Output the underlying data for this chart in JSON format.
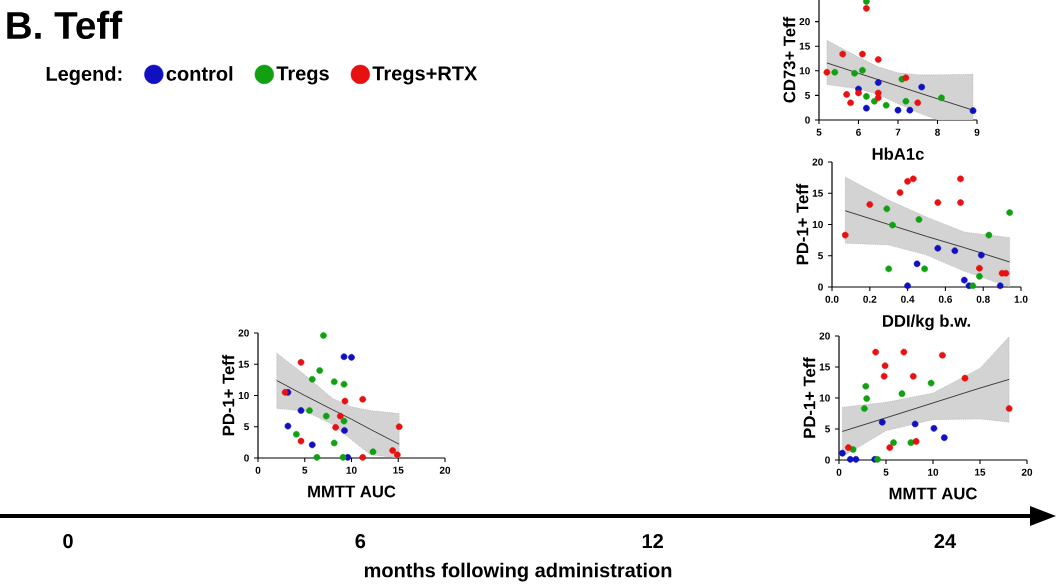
{
  "chart_data": [
    {
      "type": "other",
      "title": "B. Teff",
      "categories": [
        "0",
        "6",
        "12",
        "24"
      ],
      "xlabel": "months following administration"
    },
    {
      "type": "scatter",
      "xlabel": "HbA1c",
      "ylabel": "CD73+ Teff",
      "xlim": [
        5,
        9
      ],
      "ylim": [
        0,
        24.4
      ],
      "xticks": [
        5,
        6,
        7,
        8,
        9
      ],
      "yticks": [
        0,
        5,
        10,
        15,
        20
      ],
      "legend": "left",
      "legend_title": "Legend:",
      "series": [
        {
          "name": "control",
          "marker": "circle",
          "color": "#1010c0",
          "x": [
            6.0,
            6.2,
            6.5,
            7.0,
            7.3,
            7.6,
            8.9
          ],
          "values": [
            6.3,
            2.4,
            7.6,
            2.0,
            2.0,
            6.7,
            1.9
          ]
        },
        {
          "name": "Tregs",
          "marker": "circle",
          "color": "#10a010",
          "x": [
            5.4,
            5.9,
            6.1,
            6.2,
            6.4,
            6.7,
            7.1,
            7.2,
            8.1,
            6.2
          ],
          "values": [
            9.7,
            9.5,
            10.1,
            4.8,
            3.8,
            3.0,
            8.3,
            3.8,
            4.5,
            24.1
          ]
        },
        {
          "name": "Tregs+RTX",
          "marker": "circle",
          "color": "#e81010",
          "x": [
            5.2,
            5.6,
            5.7,
            5.8,
            6.0,
            6.1,
            6.2,
            6.5,
            6.5,
            6.5,
            7.2,
            7.5
          ],
          "values": [
            9.7,
            13.4,
            5.2,
            3.5,
            5.5,
            13.4,
            22.7,
            12.3,
            5.5,
            4.5,
            8.6,
            3.5
          ]
        },
        {
          "type": "line",
          "marker": "none",
          "color": "#333333",
          "x": [
            5.2,
            6.0,
            6.5,
            7.0,
            7.5,
            8.0,
            8.9
          ],
          "values": [
            11.6,
            9.5,
            8.2,
            6.9,
            5.6,
            4.3,
            2.0
          ],
          "lower": [
            7.2,
            6.3,
            5.2,
            3.3,
            1.5,
            0,
            0
          ],
          "upper": [
            16.2,
            12.8,
            10.8,
            9.6,
            9.2,
            9.2,
            9.3
          ]
        }
      ]
    },
    {
      "type": "scatter",
      "xlabel": "DDI/kg b.w.",
      "ylabel": "PD-1+ Teff",
      "xlim": [
        0,
        1
      ],
      "ylim": [
        0,
        20
      ],
      "xticks": [
        {
          "value": 0,
          "label": "0.0"
        },
        0.2,
        0.4,
        0.6,
        0.8,
        {
          "value": 1,
          "label": "1.0"
        }
      ],
      "yticks": [
        0,
        5,
        10,
        15,
        20
      ],
      "series": [
        {
          "marker": "circle",
          "color": "#1010c0",
          "x": [
            0.4,
            0.45,
            0.56,
            0.65,
            0.7,
            0.725,
            0.79,
            0.89
          ],
          "values": [
            0.2,
            3.7,
            6.2,
            5.8,
            1.1,
            0.2,
            5.1,
            0.2
          ]
        },
        {
          "marker": "circle",
          "color": "#10a010",
          "x": [
            0.29,
            0.32,
            0.3,
            0.46,
            0.49,
            0.83,
            0.94,
            0.78,
            0.745
          ],
          "values": [
            12.5,
            9.9,
            2.9,
            10.8,
            2.9,
            8.3,
            11.9,
            1.7,
            0.2
          ]
        },
        {
          "marker": "circle",
          "color": "#e81010",
          "x": [
            0.07,
            0.2,
            0.36,
            0.4,
            0.43,
            0.56,
            0.68,
            0.68,
            0.78,
            0.9,
            0.92
          ],
          "values": [
            8.3,
            13.2,
            15.1,
            16.9,
            17.3,
            13.5,
            17.3,
            13.5,
            3.0,
            2.2,
            2.2
          ]
        },
        {
          "type": "line",
          "marker": "none",
          "color": "#333333",
          "x": [
            0.07,
            0.3,
            0.5,
            0.7,
            0.94
          ],
          "values": [
            12.2,
            10.0,
            8.1,
            6.3,
            4.0
          ],
          "lower": [
            7.0,
            6.7,
            5.1,
            2.5,
            0
          ],
          "upper": [
            17.6,
            13.9,
            11.2,
            8.8,
            7.9
          ]
        }
      ]
    },
    {
      "type": "scatter",
      "xlabel": "MMTT AUC",
      "ylabel": "PD-1+ Teff",
      "xlim": [
        0,
        20
      ],
      "ylim": [
        0,
        20
      ],
      "xticks": [
        0,
        5,
        10,
        15,
        20
      ],
      "yticks": [
        0,
        5,
        10,
        15,
        20
      ],
      "series": [
        {
          "marker": "circle",
          "color": "#1010c0",
          "x": [
            9.2,
            10.0,
            3.2,
            4.6,
            3.2,
            5.8,
            9.25,
            9.6
          ],
          "values": [
            16.2,
            16.1,
            10.5,
            7.6,
            5.1,
            2.1,
            4.4,
            0.1
          ]
        },
        {
          "marker": "circle",
          "color": "#10a010",
          "x": [
            7.0,
            6.6,
            5.8,
            8.15,
            9.2,
            5.5,
            7.3,
            9.2,
            4.1,
            8.15,
            6.3,
            9.1,
            12.3
          ],
          "values": [
            19.6,
            14.0,
            12.6,
            12.2,
            11.8,
            7.6,
            6.7,
            5.9,
            3.8,
            2.4,
            0.1,
            0.1,
            1.0
          ]
        },
        {
          "marker": "circle",
          "color": "#e81010",
          "x": [
            2.9,
            4.6,
            4.6,
            9.3,
            11.2,
            8.8,
            8.3,
            11.2,
            14.4,
            14.9,
            15.1
          ],
          "values": [
            10.5,
            15.3,
            2.7,
            9.1,
            9.4,
            6.7,
            4.9,
            0.1,
            1.2,
            0.5,
            5.0
          ]
        },
        {
          "type": "line",
          "marker": "none",
          "color": "#333333",
          "x": [
            2,
            5,
            8,
            10,
            12,
            15.1
          ],
          "values": [
            12.4,
            10.0,
            7.7,
            6.2,
            4.6,
            2.2
          ],
          "lower": [
            7.9,
            7.5,
            5.3,
            2.9,
            0.5,
            0
          ],
          "upper": [
            16.8,
            13.3,
            9.5,
            8.2,
            7.6,
            7.1
          ]
        }
      ]
    },
    {
      "type": "scatter",
      "xlabel": "MMTT AUC",
      "ylabel": "PD-1+ Teff",
      "xlim": [
        0,
        20
      ],
      "ylim": [
        0,
        20
      ],
      "xticks": [
        0,
        5,
        10,
        15,
        20
      ],
      "yticks": [
        0,
        5,
        10,
        15,
        20
      ],
      "series": [
        {
          "marker": "circle",
          "color": "#1010c0",
          "x": [
            0.35,
            1.2,
            1.8,
            3.8,
            4.6,
            8.1,
            10.1,
            11.2
          ],
          "values": [
            1.1,
            0.1,
            0.1,
            0.1,
            6.1,
            5.8,
            5.1,
            3.6
          ]
        },
        {
          "marker": "circle",
          "color": "#10a010",
          "x": [
            2.85,
            2.95,
            2.7,
            6.7,
            9.8,
            1.5,
            5.8,
            7.65,
            4.1
          ],
          "values": [
            11.9,
            9.9,
            8.3,
            10.7,
            12.4,
            1.7,
            2.8,
            2.8,
            0.1
          ]
        },
        {
          "marker": "circle",
          "color": "#e81010",
          "x": [
            3.9,
            6.9,
            4.9,
            4.8,
            7.9,
            11.0,
            13.4,
            18.1,
            1.0,
            5.4,
            8.2
          ],
          "values": [
            17.4,
            17.4,
            15.2,
            13.5,
            13.5,
            16.9,
            13.2,
            8.3,
            2.0,
            2.0,
            3.0
          ]
        },
        {
          "type": "line",
          "marker": "none",
          "color": "#333333",
          "x": [
            0.35,
            5,
            10,
            15,
            18.1
          ],
          "values": [
            4.6,
            6.8,
            9.2,
            11.6,
            13.0
          ],
          "lower": [
            0.5,
            4.7,
            6.5,
            6.6,
            6.1
          ],
          "upper": [
            8.5,
            9.3,
            10.8,
            14.8,
            19.9
          ]
        }
      ]
    }
  ]
}
